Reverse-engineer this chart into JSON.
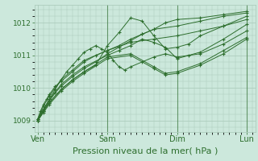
{
  "background_color": "#cce8dc",
  "plot_bg_color": "#cce8dc",
  "grid_color": "#a8c8b8",
  "line_color": "#2d6e2d",
  "marker_color": "#2d6e2d",
  "xlabel": "Pression niveau de la mer( hPa )",
  "xlabel_fontsize": 8,
  "tick_label_color": "#2d6e2d",
  "ylim": [
    1008.65,
    1012.55
  ],
  "yticks": [
    1009,
    1010,
    1011,
    1012
  ],
  "xtick_labels": [
    "Ven",
    "Sam",
    "Dim",
    "Lun"
  ],
  "xtick_positions": [
    0,
    72,
    144,
    216
  ],
  "xlim": [
    -3,
    225
  ],
  "series": [
    [
      0,
      1009.05,
      3,
      1009.3,
      6,
      1009.5,
      9,
      1009.65,
      12,
      1009.8,
      18,
      1010.05,
      24,
      1010.2,
      36,
      1010.5,
      48,
      1010.8,
      60,
      1011.0,
      72,
      1011.15,
      84,
      1011.3,
      96,
      1011.5,
      108,
      1011.65,
      120,
      1011.8,
      132,
      1012.0,
      144,
      1012.1,
      168,
      1012.15,
      192,
      1012.25,
      216,
      1012.35
    ],
    [
      0,
      1009.05,
      6,
      1009.45,
      12,
      1009.75,
      24,
      1010.25,
      36,
      1010.55,
      48,
      1010.85,
      72,
      1011.15,
      96,
      1011.4,
      120,
      1011.5,
      144,
      1011.6,
      168,
      1011.75,
      192,
      1011.9,
      216,
      1012.1
    ],
    [
      0,
      1009.0,
      6,
      1009.35,
      12,
      1009.65,
      24,
      1010.1,
      36,
      1010.4,
      48,
      1010.65,
      72,
      1011.0,
      84,
      1011.15,
      96,
      1011.3,
      108,
      1011.5,
      120,
      1011.4,
      132,
      1011.25,
      144,
      1010.9,
      156,
      1011.0,
      168,
      1011.1,
      192,
      1011.5,
      216,
      1011.95
    ],
    [
      0,
      1009.0,
      6,
      1009.3,
      12,
      1009.6,
      18,
      1009.85,
      24,
      1010.05,
      36,
      1010.35,
      48,
      1010.6,
      60,
      1010.8,
      72,
      1011.05,
      84,
      1011.25,
      96,
      1011.45,
      108,
      1011.65,
      120,
      1011.8,
      144,
      1011.9,
      168,
      1012.05,
      192,
      1012.2,
      216,
      1012.3
    ],
    [
      0,
      1009.0,
      6,
      1009.3,
      12,
      1009.55,
      24,
      1009.95,
      36,
      1010.25,
      48,
      1010.5,
      72,
      1010.95,
      96,
      1011.05,
      120,
      1010.65,
      132,
      1010.45,
      144,
      1010.5,
      168,
      1010.75,
      192,
      1011.15,
      216,
      1011.55
    ],
    [
      0,
      1009.0,
      6,
      1009.3,
      12,
      1009.55,
      24,
      1009.95,
      36,
      1010.25,
      48,
      1010.5,
      60,
      1010.7,
      72,
      1011.3,
      84,
      1011.7,
      96,
      1012.15,
      108,
      1012.05,
      120,
      1011.6,
      132,
      1011.2,
      144,
      1011.25,
      156,
      1011.35,
      168,
      1011.6,
      192,
      1011.9,
      216,
      1012.2
    ],
    [
      0,
      1009.0,
      6,
      1009.25,
      12,
      1009.5,
      24,
      1009.9,
      36,
      1010.2,
      48,
      1010.45,
      72,
      1010.9,
      96,
      1011.0,
      120,
      1010.6,
      132,
      1010.4,
      144,
      1010.45,
      168,
      1010.7,
      192,
      1011.05,
      216,
      1011.5
    ],
    [
      0,
      1009.05,
      6,
      1009.35,
      12,
      1009.65,
      18,
      1009.95,
      24,
      1010.25,
      30,
      1010.5,
      36,
      1010.7,
      42,
      1010.9,
      48,
      1011.1,
      54,
      1011.2,
      60,
      1011.3,
      66,
      1011.2,
      72,
      1011.1,
      78,
      1010.85,
      84,
      1010.65,
      90,
      1010.55,
      96,
      1010.65,
      108,
      1010.8,
      120,
      1010.95,
      132,
      1011.05,
      144,
      1010.95,
      168,
      1011.05,
      192,
      1011.35,
      216,
      1011.75
    ]
  ]
}
